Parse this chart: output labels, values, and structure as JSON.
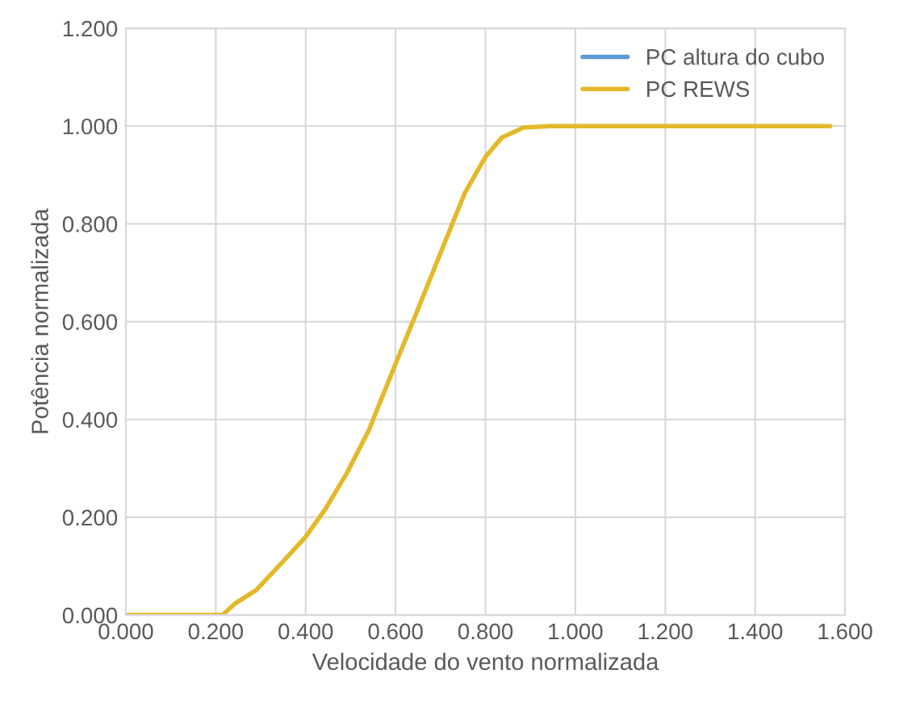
{
  "chart_data": {
    "type": "line",
    "xlabel": "Velocidade do vento normalizada",
    "ylabel": "Potência normalizada",
    "x": [
      0.0,
      0.1,
      0.2,
      0.215,
      0.242,
      0.29,
      0.349,
      0.4,
      0.444,
      0.492,
      0.54,
      0.6,
      0.646,
      0.706,
      0.754,
      0.8,
      0.837,
      0.885,
      0.944,
      1.0,
      1.2,
      1.4,
      1.567
    ],
    "series": [
      {
        "name": "PC altura do cubo",
        "color": "#5b9bd5",
        "values": [
          null,
          null,
          null,
          null,
          null,
          null,
          null,
          null,
          null,
          null,
          null,
          null,
          null,
          null,
          null,
          null,
          null,
          null,
          null,
          null,
          null,
          null,
          null
        ]
      },
      {
        "name": "PC REWS",
        "color": "#e3b92a",
        "values": [
          0.0,
          0.0,
          0.0,
          0.0,
          0.023,
          0.051,
          0.109,
          0.16,
          0.217,
          0.291,
          0.377,
          0.514,
          0.617,
          0.754,
          0.863,
          0.937,
          0.977,
          0.997,
          1.0,
          1.0,
          1.0,
          1.0,
          1.0
        ]
      }
    ],
    "xlim": [
      0,
      1.6
    ],
    "ylim": [
      0,
      1.2
    ],
    "xticks": [
      {
        "value": 0,
        "label": "0.000"
      },
      {
        "value": 0.2,
        "label": "0.200"
      },
      {
        "value": 0.4,
        "label": "0.400"
      },
      {
        "value": 0.6,
        "label": "0.600"
      },
      {
        "value": 0.8,
        "label": "0.800"
      },
      {
        "value": 1.0,
        "label": "1.000"
      },
      {
        "value": 1.2,
        "label": "1.200"
      },
      {
        "value": 1.4,
        "label": "1.400"
      },
      {
        "value": 1.6,
        "label": "1.600"
      }
    ],
    "yticks": [
      {
        "value": 0,
        "label": "0.000"
      },
      {
        "value": 0.2,
        "label": "0.200"
      },
      {
        "value": 0.4,
        "label": "0.400"
      },
      {
        "value": 0.6,
        "label": "0.600"
      },
      {
        "value": 0.8,
        "label": "0.800"
      },
      {
        "value": 1.0,
        "label": "1.000"
      },
      {
        "value": 1.2,
        "label": "1.200"
      }
    ],
    "grid": true,
    "legend": "top right",
    "marker": "none",
    "line_style": "solid"
  }
}
